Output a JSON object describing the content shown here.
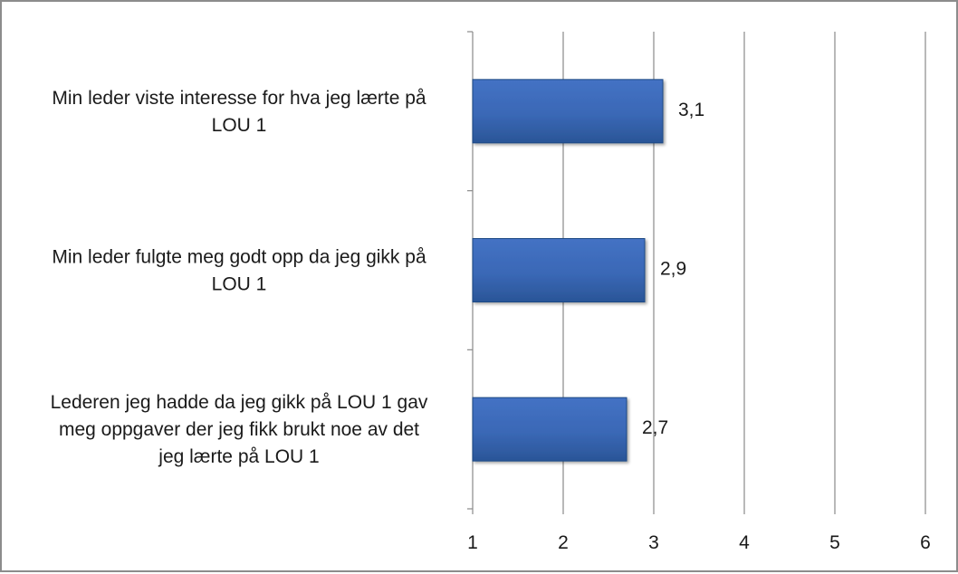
{
  "chart_data": {
    "type": "bar",
    "orientation": "horizontal",
    "categories": [
      "Min leder viste interesse for hva jeg lærte på LOU 1",
      "Min leder fulgte meg godt opp da jeg gikk på LOU 1",
      "Lederen jeg hadde da jeg gikk på LOU 1 gav meg oppgaver der jeg fikk brukt noe av det jeg lærte på LOU 1"
    ],
    "category_lines": [
      [
        "Min leder viste interesse for hva jeg lærte på",
        "LOU 1"
      ],
      [
        "Min leder fulgte meg godt opp da jeg gikk på",
        "LOU 1"
      ],
      [
        "Lederen jeg hadde da jeg gikk på LOU 1 gav",
        "meg oppgaver der jeg fikk brukt noe av det",
        "jeg lærte på LOU 1"
      ]
    ],
    "values": [
      3.1,
      2.9,
      2.7
    ],
    "data_labels": [
      "3,1",
      "2,9",
      "2,7"
    ],
    "xlim": [
      1,
      6
    ],
    "xticks": [
      1,
      2,
      3,
      4,
      5,
      6
    ],
    "xtick_labels": [
      "1",
      "2",
      "3",
      "4",
      "5",
      "6"
    ],
    "grid": "vertical",
    "legend": "none",
    "colors": {
      "bar": "#4472c4",
      "bar_dark": "#2a5597",
      "bar_edge": "#1f4a85",
      "grid": "#8a8a8a"
    }
  }
}
